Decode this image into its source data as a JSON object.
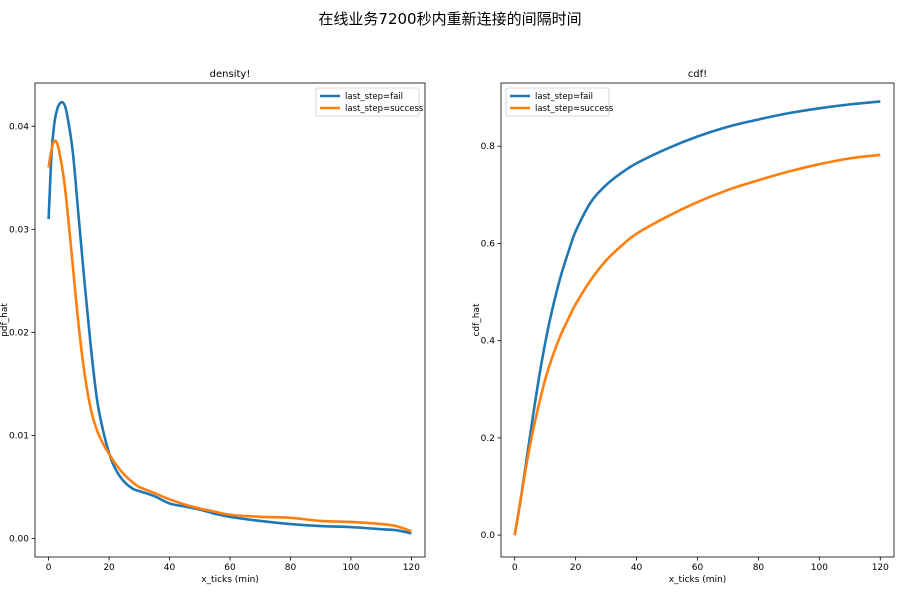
{
  "figure": {
    "title": "在线业务7200秒内重新连接的间隔时间"
  },
  "colors": {
    "fail": "#1f77b4",
    "success": "#ff7f0e"
  },
  "chart_data": [
    {
      "type": "line",
      "title": "density!",
      "xlabel": "x_ticks (min)",
      "ylabel": "pdf_hat",
      "xlim": [
        -4.5,
        124.5
      ],
      "ylim": [
        -0.0018,
        0.0442
      ],
      "xticks": [
        0,
        20,
        40,
        60,
        80,
        100,
        120
      ],
      "yticks": [
        0.0,
        0.01,
        0.02,
        0.03,
        0.04
      ],
      "ytick_labels": [
        "0.00",
        "0.01",
        "0.02",
        "0.03",
        "0.04"
      ],
      "grid": false,
      "legend": "top-right",
      "series": [
        {
          "name": "last_step=fail",
          "color_key": "fail",
          "x": [
            0,
            1,
            2,
            3,
            4,
            5,
            6,
            8,
            10,
            12,
            14,
            16,
            18,
            20,
            22,
            25,
            28,
            30,
            35,
            40,
            45,
            50,
            55,
            60,
            70,
            80,
            90,
            100,
            110,
            115,
            120
          ],
          "y": [
            0.031,
            0.0375,
            0.0405,
            0.0418,
            0.0423,
            0.0422,
            0.0413,
            0.0375,
            0.031,
            0.0245,
            0.0185,
            0.0135,
            0.0105,
            0.0083,
            0.0068,
            0.0055,
            0.0048,
            0.0046,
            0.0041,
            0.0034,
            0.0031,
            0.0028,
            0.0024,
            0.0021,
            0.0017,
            0.0014,
            0.0012,
            0.0011,
            0.0009,
            0.0008,
            0.0005
          ]
        },
        {
          "name": "last_step=success",
          "color_key": "success",
          "x": [
            0,
            1,
            2,
            3,
            4,
            5,
            6,
            8,
            10,
            12,
            14,
            16,
            18,
            20,
            22,
            25,
            28,
            30,
            35,
            40,
            45,
            50,
            55,
            60,
            70,
            80,
            90,
            100,
            110,
            115,
            120
          ],
          "y": [
            0.036,
            0.0378,
            0.0386,
            0.0382,
            0.0368,
            0.035,
            0.0325,
            0.0265,
            0.0205,
            0.0158,
            0.0125,
            0.0105,
            0.0092,
            0.0082,
            0.0073,
            0.0062,
            0.0054,
            0.005,
            0.0044,
            0.0038,
            0.0033,
            0.0029,
            0.0026,
            0.0023,
            0.0021,
            0.002,
            0.0017,
            0.0016,
            0.0014,
            0.0012,
            0.0007
          ]
        }
      ]
    },
    {
      "type": "line",
      "title": "cdf!",
      "xlabel": "x_ticks (min)",
      "ylabel": "cdf_hat",
      "xlim": [
        -4.5,
        124.5
      ],
      "ylim": [
        -0.045,
        0.93
      ],
      "xticks": [
        0,
        20,
        40,
        60,
        80,
        100,
        120
      ],
      "yticks": [
        0.0,
        0.2,
        0.4,
        0.6,
        0.8
      ],
      "ytick_labels": [
        "0.0",
        "0.2",
        "0.4",
        "0.6",
        "0.8"
      ],
      "grid": false,
      "legend": "top-left",
      "series": [
        {
          "name": "last_step=fail",
          "color_key": "fail",
          "x": [
            0,
            2,
            4,
            6,
            8,
            10,
            12,
            15,
            18,
            20,
            25,
            30,
            35,
            40,
            50,
            60,
            70,
            80,
            90,
            100,
            110,
            120
          ],
          "y": [
            0.0,
            0.075,
            0.16,
            0.245,
            0.325,
            0.395,
            0.455,
            0.53,
            0.59,
            0.625,
            0.685,
            0.72,
            0.745,
            0.765,
            0.795,
            0.82,
            0.84,
            0.855,
            0.868,
            0.878,
            0.886,
            0.892
          ]
        },
        {
          "name": "last_step=success",
          "color_key": "success",
          "x": [
            0,
            2,
            4,
            6,
            8,
            10,
            12,
            15,
            18,
            20,
            25,
            30,
            35,
            40,
            50,
            60,
            70,
            80,
            90,
            100,
            110,
            120
          ],
          "y": [
            0.0,
            0.075,
            0.15,
            0.215,
            0.27,
            0.32,
            0.36,
            0.41,
            0.45,
            0.475,
            0.525,
            0.565,
            0.595,
            0.62,
            0.655,
            0.685,
            0.71,
            0.73,
            0.748,
            0.763,
            0.775,
            0.782
          ]
        }
      ]
    }
  ]
}
